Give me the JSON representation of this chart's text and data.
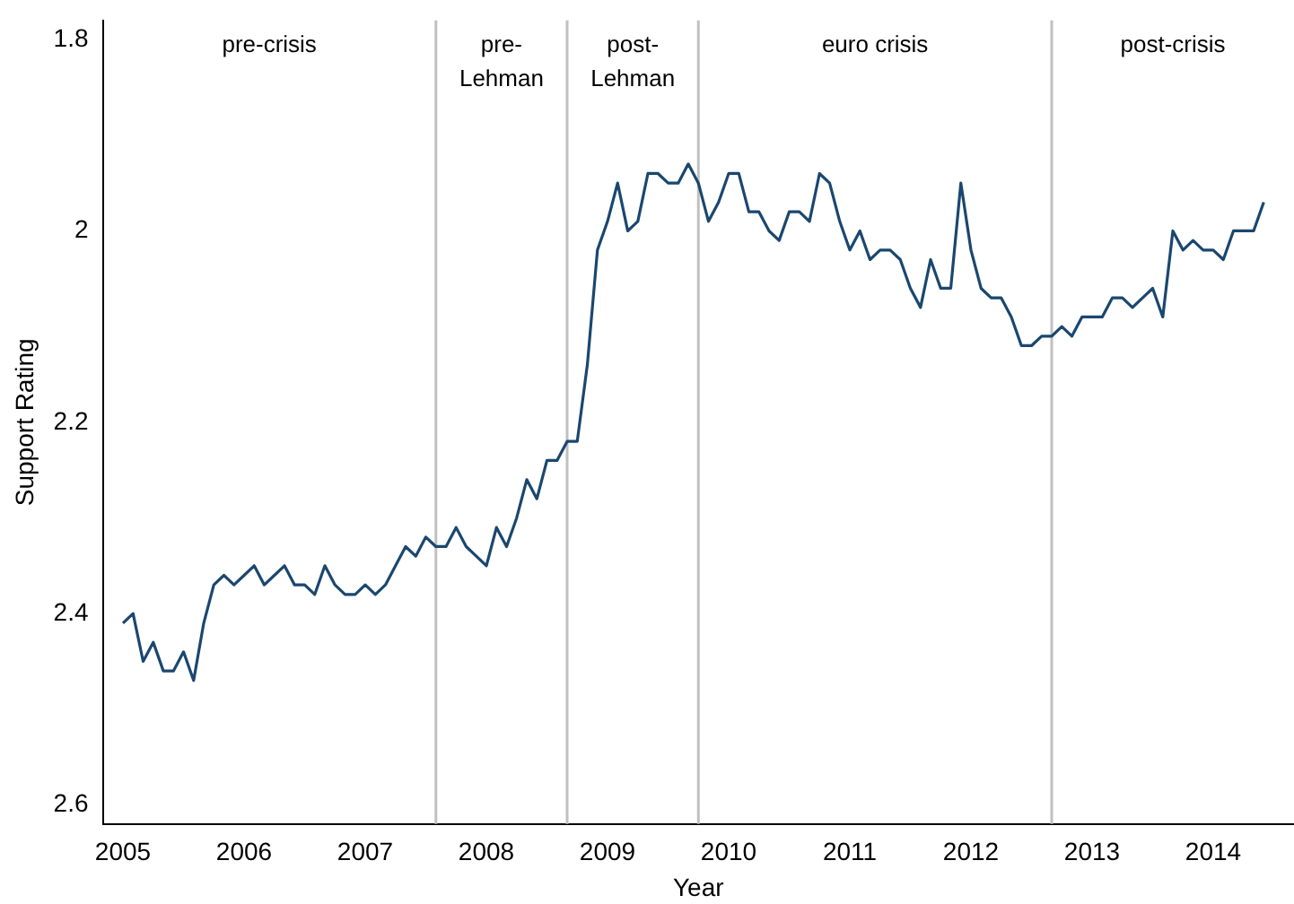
{
  "chart_data": {
    "type": "line",
    "xlabel": "Year",
    "ylabel": "Support Rating",
    "x": [
      "2005-01",
      "2005-02",
      "2005-03",
      "2005-04",
      "2005-05",
      "2005-06",
      "2005-07",
      "2005-08",
      "2005-09",
      "2005-10",
      "2005-11",
      "2005-12",
      "2006-01",
      "2006-02",
      "2006-03",
      "2006-04",
      "2006-05",
      "2006-06",
      "2006-07",
      "2006-08",
      "2006-09",
      "2006-10",
      "2006-11",
      "2006-12",
      "2007-01",
      "2007-02",
      "2007-03",
      "2007-04",
      "2007-05",
      "2007-06",
      "2007-07",
      "2007-08",
      "2007-09",
      "2007-10",
      "2007-11",
      "2007-12",
      "2008-01",
      "2008-02",
      "2008-03",
      "2008-04",
      "2008-05",
      "2008-06",
      "2008-07",
      "2008-08",
      "2008-09",
      "2008-10",
      "2008-11",
      "2008-12",
      "2009-01",
      "2009-02",
      "2009-03",
      "2009-04",
      "2009-05",
      "2009-06",
      "2009-07",
      "2009-08",
      "2009-09",
      "2009-10",
      "2009-11",
      "2009-12",
      "2010-01",
      "2010-02",
      "2010-03",
      "2010-04",
      "2010-05",
      "2010-06",
      "2010-07",
      "2010-08",
      "2010-09",
      "2010-10",
      "2010-11",
      "2010-12",
      "2011-01",
      "2011-02",
      "2011-03",
      "2011-04",
      "2011-05",
      "2011-06",
      "2011-07",
      "2011-08",
      "2011-09",
      "2011-10",
      "2011-11",
      "2011-12",
      "2012-01",
      "2012-02",
      "2012-03",
      "2012-04",
      "2012-05",
      "2012-06",
      "2012-07",
      "2012-08",
      "2012-09",
      "2012-10",
      "2012-11",
      "2012-12",
      "2013-01",
      "2013-02",
      "2013-03",
      "2013-04",
      "2013-05",
      "2013-06",
      "2013-07",
      "2013-08",
      "2013-09",
      "2013-10",
      "2013-11",
      "2013-12",
      "2014-01",
      "2014-02",
      "2014-03",
      "2014-04",
      "2014-05",
      "2014-06"
    ],
    "series": [
      {
        "color": "#1a476f",
        "values": [
          2.41,
          2.4,
          2.45,
          2.43,
          2.46,
          2.46,
          2.44,
          2.47,
          2.41,
          2.37,
          2.36,
          2.37,
          2.36,
          2.35,
          2.37,
          2.36,
          2.35,
          2.37,
          2.37,
          2.38,
          2.35,
          2.37,
          2.38,
          2.38,
          2.37,
          2.38,
          2.37,
          2.35,
          2.33,
          2.34,
          2.32,
          2.33,
          2.33,
          2.31,
          2.33,
          2.34,
          2.35,
          2.31,
          2.33,
          2.3,
          2.26,
          2.28,
          2.24,
          2.24,
          2.22,
          2.22,
          2.14,
          2.02,
          1.99,
          1.95,
          2.0,
          1.99,
          1.94,
          1.94,
          1.95,
          1.95,
          1.93,
          1.95,
          1.99,
          1.97,
          1.94,
          1.94,
          1.98,
          1.98,
          2.0,
          2.01,
          1.98,
          1.98,
          1.99,
          1.94,
          1.95,
          1.99,
          2.02,
          2.0,
          2.03,
          2.02,
          2.02,
          2.03,
          2.06,
          2.08,
          2.03,
          2.06,
          2.06,
          1.95,
          2.02,
          2.06,
          2.07,
          2.07,
          2.09,
          2.12,
          2.12,
          2.11,
          2.11,
          2.1,
          2.11,
          2.09,
          2.09,
          2.09,
          2.07,
          2.07,
          2.08,
          2.07,
          2.06,
          2.09,
          2.0,
          2.02,
          2.01,
          2.02,
          2.02,
          2.03,
          2.0,
          2.0,
          2.0,
          1.97
        ]
      }
    ],
    "xlim": [
      "2004-11",
      "2014-09"
    ],
    "xticks": [
      "2005",
      "2006",
      "2007",
      "2008",
      "2009",
      "2010",
      "2011",
      "2012",
      "2013",
      "2014"
    ],
    "ylim": [
      2.62,
      1.78
    ],
    "yticks": [
      1.8,
      2,
      2.2,
      2.4,
      2.6
    ],
    "ref_lines": [
      {
        "axis": "x",
        "value": "2007-08",
        "color": "#c0c0c0"
      },
      {
        "axis": "x",
        "value": "2008-09",
        "color": "#c0c0c0"
      },
      {
        "axis": "x",
        "value": "2009-10",
        "color": "#c0c0c0"
      },
      {
        "axis": "x",
        "value": "2012-09",
        "color": "#c0c0c0"
      }
    ],
    "annotations": [
      "pre-crisis",
      "pre-\nLehman",
      "post-\nLehman",
      "euro crisis",
      "post-crisis"
    ],
    "grid": false,
    "legend": false,
    "marker": "none",
    "line_style": "solid"
  }
}
